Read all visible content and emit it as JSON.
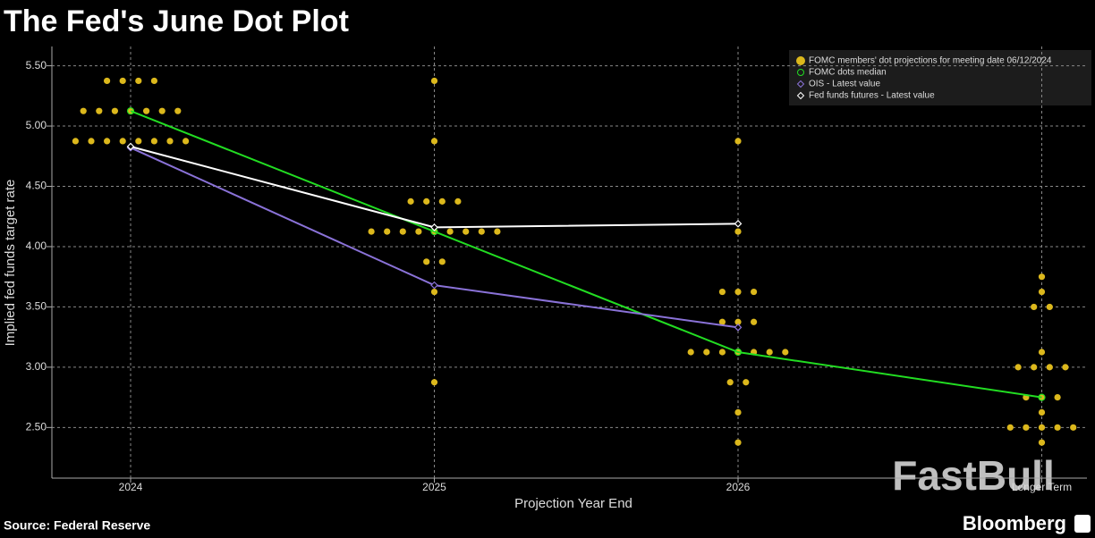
{
  "chart_data": {
    "type": "dot_plot",
    "title": "The Fed's June Dot Plot",
    "x_label": "Projection Year End",
    "y_label": "Implied fed funds target rate",
    "source": "Source: Federal Reserve",
    "brand": "Bloomberg",
    "watermark": "FastBull",
    "categories": [
      "2024",
      "2025",
      "2026",
      "Longer Term"
    ],
    "ylim": [
      2.08,
      5.66
    ],
    "yticks": [
      {
        "value": 2.5,
        "label": "2.50"
      },
      {
        "value": 3,
        "label": "3.00"
      },
      {
        "value": 3.5,
        "label": "3.50"
      },
      {
        "value": 4,
        "label": "4.00"
      },
      {
        "value": 4.5,
        "label": "4.50"
      },
      {
        "value": 5,
        "label": "5.00"
      },
      {
        "value": 5.5,
        "label": "5.50"
      }
    ],
    "grid": true,
    "legend": "upper right",
    "dots": {
      "name": "FOMC members' dot projections for meeting date 06/12/2024",
      "color": "#dcb81c",
      "values": [
        [
          5.375,
          5.375,
          5.375,
          5.375,
          5.125,
          5.125,
          5.125,
          5.125,
          5.125,
          5.125,
          5.125,
          4.875,
          4.875,
          4.875,
          4.875,
          4.875,
          4.875,
          4.875,
          4.875
        ],
        [
          5.375,
          4.875,
          4.375,
          4.375,
          4.375,
          4.375,
          4.125,
          4.125,
          4.125,
          4.125,
          4.125,
          4.125,
          4.125,
          4.125,
          4.125,
          3.875,
          3.875,
          3.625,
          2.875
        ],
        [
          4.875,
          4.125,
          3.625,
          3.625,
          3.625,
          3.375,
          3.375,
          3.375,
          3.125,
          3.125,
          3.125,
          3.125,
          3.125,
          3.125,
          3.125,
          2.875,
          2.875,
          2.625,
          2.375
        ],
        [
          3.75,
          3.625,
          3.5,
          3.5,
          3.125,
          3.0,
          3.0,
          3.0,
          3.0,
          2.75,
          2.75,
          2.75,
          2.625,
          2.5,
          2.5,
          2.5,
          2.5,
          2.5,
          2.375
        ]
      ]
    },
    "series": [
      {
        "name": "FOMC dots median",
        "color": "#22dd22",
        "marker": "circle",
        "values": [
          5.125,
          4.125,
          3.125,
          2.75
        ]
      },
      {
        "name": "OIS - Latest value",
        "color": "#8a72d8",
        "marker": "diamond",
        "values": [
          4.82,
          3.68,
          3.33,
          null
        ]
      },
      {
        "name": "Fed funds futures - Latest value",
        "color": "#ffffff",
        "marker": "diamond",
        "values": [
          4.83,
          4.16,
          4.19,
          null
        ]
      }
    ]
  }
}
